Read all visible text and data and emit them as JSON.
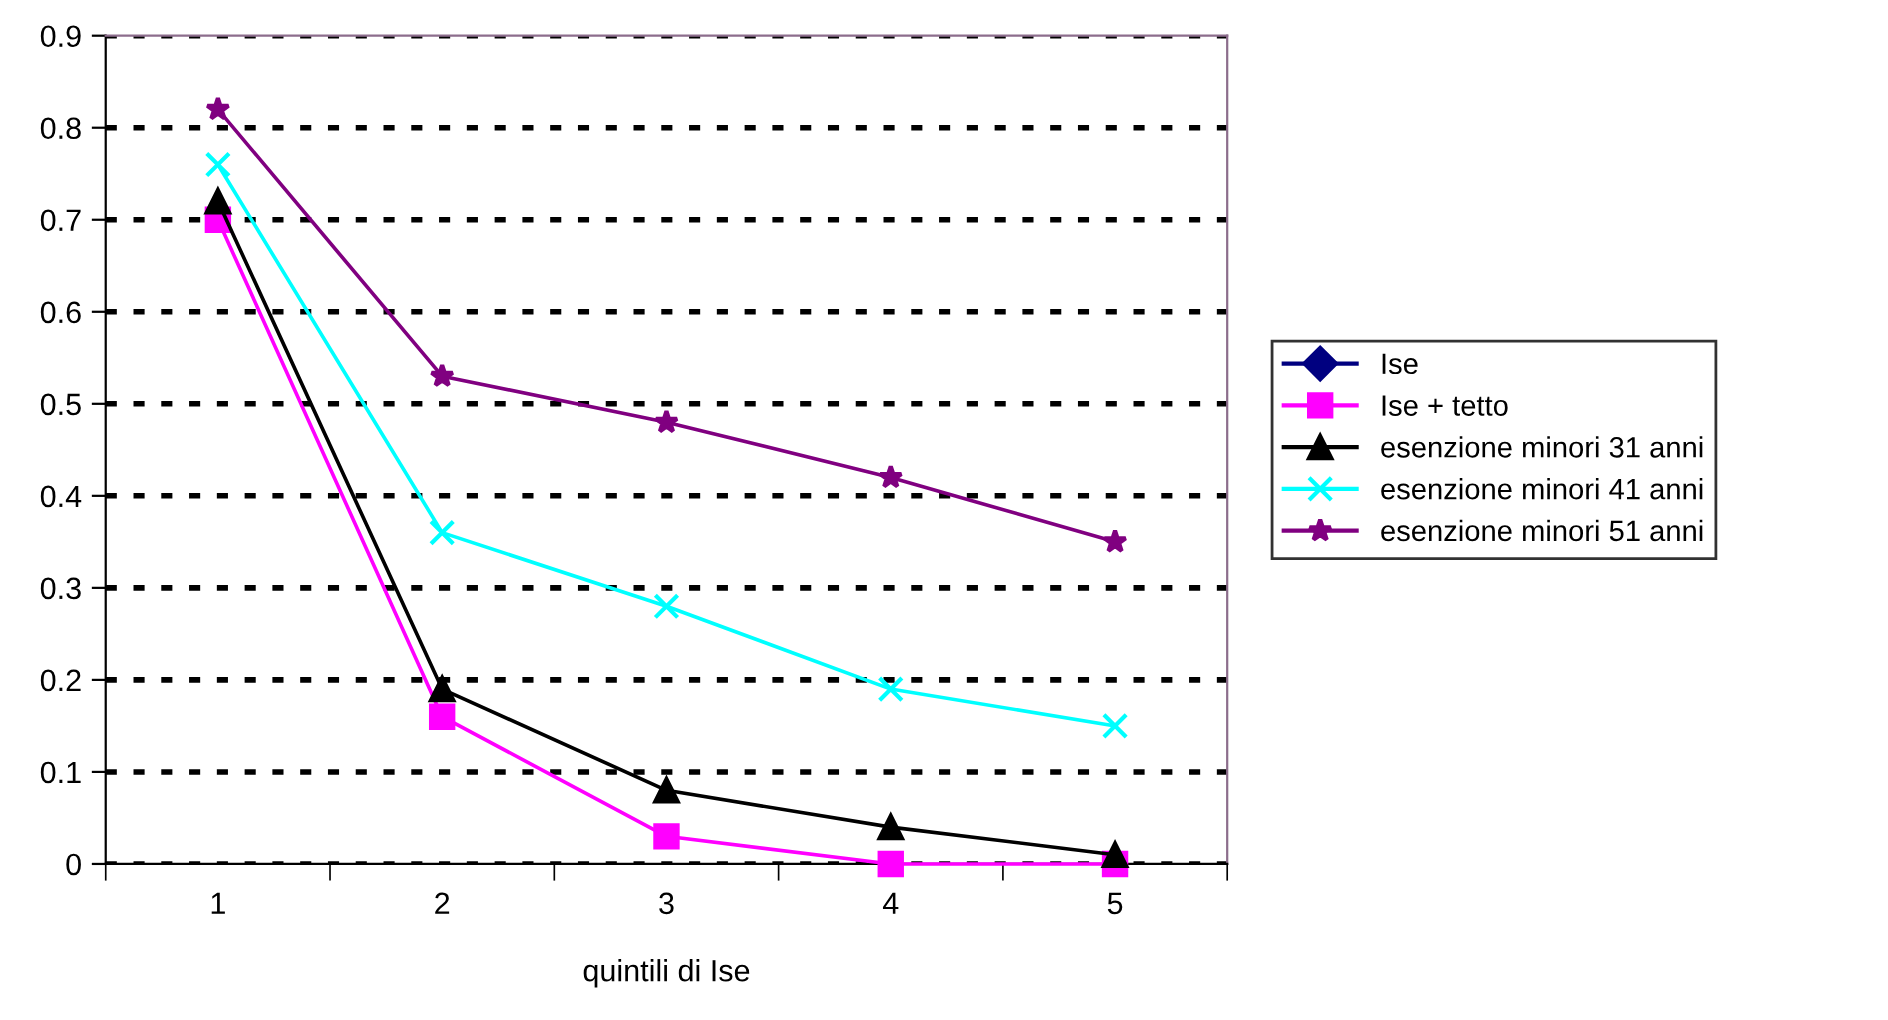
{
  "chart_data": {
    "type": "line",
    "xlabel": "quintili di Ise",
    "categories": [
      "1",
      "2",
      "3",
      "4",
      "5"
    ],
    "series": [
      {
        "name": "Ise",
        "color": "#000080",
        "marker": "diamond",
        "values": [
          null,
          null,
          null,
          null,
          null
        ]
      },
      {
        "name": "Ise + tetto",
        "color": "#ff00ff",
        "marker": "square",
        "values": [
          0.7,
          0.16,
          0.03,
          0,
          0
        ]
      },
      {
        "name": "esenzione minori 31 anni",
        "color": "#000000",
        "marker": "triangle",
        "values": [
          0.72,
          0.19,
          0.08,
          0.04,
          0.01
        ]
      },
      {
        "name": "esenzione minori 41 anni",
        "color": "#00ffff",
        "marker": "cross",
        "values": [
          0.76,
          0.36,
          0.28,
          0.19,
          0.15
        ]
      },
      {
        "name": "esenzione minori 51 anni",
        "color": "#800080",
        "marker": "star",
        "values": [
          0.82,
          0.53,
          0.48,
          0.42,
          0.35
        ]
      }
    ],
    "ylim": [
      0,
      0.9
    ],
    "yticks": [
      0,
      0.1,
      0.2,
      0.3,
      0.4,
      0.5,
      0.6,
      0.7,
      0.8,
      0.9
    ],
    "grid": "y",
    "legend": "right",
    "line_style": "solid"
  }
}
